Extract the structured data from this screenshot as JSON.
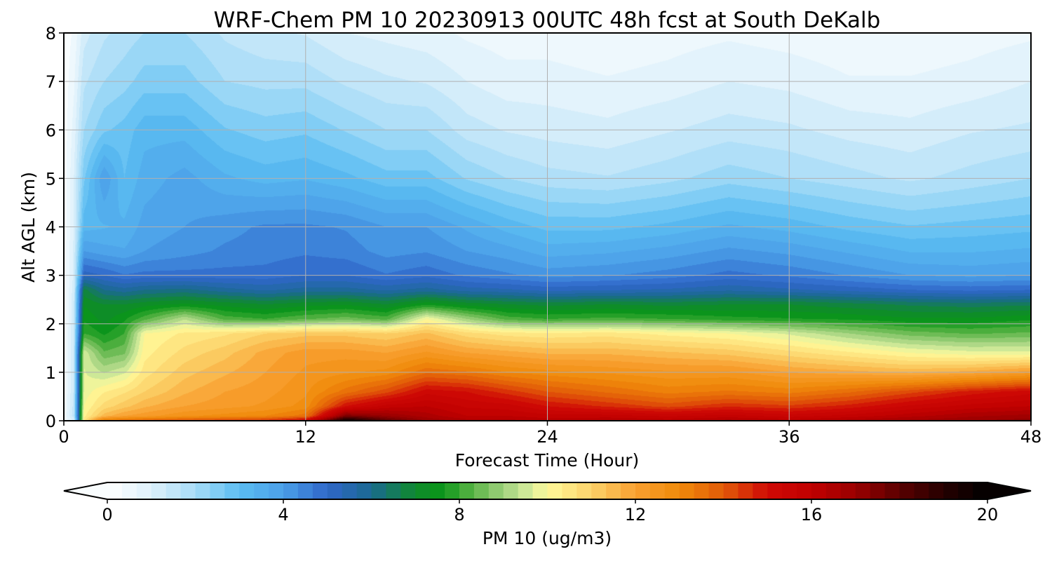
{
  "chart_data": {
    "type": "heatmap",
    "title": "WRF-Chem PM 10  20230913 00UTC 48h fcst at South DeKalb",
    "xlabel": "Forecast Time (Hour)",
    "ylabel": "Alt AGL (km)",
    "xlim": [
      0,
      48
    ],
    "ylim": [
      0,
      8
    ],
    "x_ticks": [
      0,
      12,
      24,
      36,
      48
    ],
    "y_ticks": [
      0,
      1,
      2,
      3,
      4,
      5,
      6,
      7,
      8
    ],
    "grid": true,
    "z_hours": [
      0,
      0.5,
      1,
      2,
      3,
      4,
      6,
      8,
      10,
      12,
      14,
      16,
      18,
      20,
      22,
      24,
      27,
      30,
      33,
      36,
      39,
      42,
      45,
      48
    ],
    "z_altitudes_km": [
      0,
      0.1,
      0.3,
      0.6,
      1.0,
      1.4,
      1.8,
      2.1,
      2.4,
      2.7,
      3.0,
      3.5,
      4.0,
      5.0,
      6.0,
      7.0,
      8.0
    ],
    "z_values": [
      [
        0.3,
        0.3,
        0.2,
        0.2,
        0.2,
        0.2,
        0.1,
        0.1,
        0.1,
        0.1,
        0.1,
        0.1,
        0.1,
        0.1,
        0.1,
        0.1,
        0.1
      ],
      [
        1.0,
        1.6,
        1.5,
        1.4,
        1.4,
        1.4,
        1.4,
        1.3,
        1.3,
        1.2,
        1.1,
        1.1,
        1.0,
        1.0,
        0.8,
        0.6,
        0.4
      ],
      [
        10.5,
        10.2,
        10.0,
        9.8,
        9.7,
        9.6,
        8.0,
        7.6,
        7.3,
        6.8,
        5.2,
        4.0,
        3.2,
        2.6,
        2.0,
        1.6,
        1.2
      ],
      [
        13.5,
        11.5,
        10.8,
        10.3,
        9.3,
        8.4,
        7.6,
        7.2,
        7.0,
        6.0,
        5.0,
        3.8,
        3.3,
        4.0,
        2.6,
        2.0,
        1.6
      ],
      [
        13.8,
        12.0,
        11.2,
        10.6,
        9.6,
        8.6,
        8.0,
        7.6,
        7.0,
        5.8,
        4.7,
        3.7,
        3.4,
        3.0,
        2.8,
        2.2,
        1.8
      ],
      [
        14.0,
        12.2,
        11.6,
        11.0,
        10.5,
        10.2,
        10.0,
        8.2,
        7.2,
        6.0,
        4.8,
        4.0,
        3.8,
        3.5,
        3.2,
        2.5,
        2.0
      ],
      [
        14.2,
        12.6,
        12.0,
        11.6,
        11.2,
        10.8,
        10.4,
        9.3,
        7.4,
        6.1,
        4.8,
        4.2,
        4.0,
        3.8,
        3.2,
        2.5,
        2.0
      ],
      [
        14.4,
        12.8,
        12.2,
        12.0,
        11.6,
        11.2,
        10.6,
        8.2,
        7.2,
        5.8,
        4.8,
        4.4,
        4.2,
        3.4,
        2.7,
        2.0,
        1.6
      ],
      [
        14.6,
        13.0,
        12.4,
        12.2,
        12.0,
        11.8,
        11.0,
        8.0,
        7.0,
        5.6,
        4.8,
        4.5,
        4.4,
        3.2,
        2.5,
        1.9,
        1.4
      ],
      [
        15.5,
        13.5,
        12.8,
        12.6,
        12.4,
        12.2,
        11.2,
        8.3,
        7.2,
        5.8,
        5.0,
        4.6,
        4.4,
        3.3,
        2.6,
        1.9,
        1.3
      ],
      [
        19.8,
        17.5,
        15.0,
        13.5,
        12.6,
        12.2,
        11.2,
        8.5,
        7.3,
        5.8,
        5.0,
        4.5,
        4.3,
        3.1,
        2.3,
        1.6,
        1.0
      ],
      [
        18.0,
        17.0,
        15.8,
        14.2,
        12.8,
        12.0,
        11.0,
        8.2,
        7.0,
        5.6,
        4.7,
        4.2,
        4.0,
        2.8,
        2.0,
        1.4,
        0.9
      ],
      [
        17.0,
        16.5,
        16.0,
        15.2,
        13.6,
        12.4,
        11.4,
        10.0,
        7.6,
        5.8,
        4.9,
        4.3,
        4.0,
        2.8,
        2.0,
        1.3,
        0.8
      ],
      [
        16.5,
        16.0,
        15.6,
        15.0,
        13.4,
        12.0,
        10.8,
        9.0,
        7.2,
        5.5,
        4.6,
        4.0,
        3.6,
        2.3,
        1.5,
        1.0,
        0.6
      ],
      [
        16.5,
        16.0,
        15.5,
        14.5,
        13.0,
        11.8,
        10.5,
        8.2,
        7.0,
        5.4,
        4.4,
        3.8,
        3.2,
        2.0,
        1.3,
        0.8,
        0.5
      ],
      [
        16.2,
        15.8,
        15.0,
        14.0,
        12.8,
        11.6,
        10.4,
        8.0,
        6.9,
        5.2,
        4.2,
        3.5,
        2.9,
        1.8,
        1.2,
        0.8,
        0.5
      ],
      [
        16.4,
        15.8,
        14.6,
        13.6,
        12.6,
        11.6,
        10.5,
        8.1,
        7.0,
        5.3,
        4.3,
        3.6,
        2.9,
        1.7,
        1.1,
        0.7,
        0.4
      ],
      [
        16.2,
        15.6,
        14.2,
        13.2,
        12.4,
        11.4,
        10.2,
        8.0,
        6.9,
        5.4,
        4.5,
        3.8,
        3.1,
        1.9,
        1.3,
        0.8,
        0.5
      ],
      [
        16.5,
        15.8,
        14.6,
        13.4,
        12.4,
        11.2,
        10.0,
        7.8,
        7.0,
        5.6,
        4.8,
        4.1,
        3.4,
        2.2,
        1.5,
        1.0,
        0.6
      ],
      [
        16.2,
        15.5,
        14.4,
        13.2,
        12.0,
        10.8,
        9.6,
        7.7,
        7.0,
        5.4,
        4.6,
        3.9,
        3.2,
        2.0,
        1.4,
        0.9,
        0.5
      ],
      [
        16.5,
        15.8,
        14.8,
        13.6,
        11.8,
        10.4,
        9.0,
        7.6,
        6.8,
        5.2,
        4.3,
        3.6,
        2.9,
        1.8,
        1.2,
        0.7,
        0.4
      ],
      [
        16.8,
        16.2,
        15.4,
        14.2,
        11.6,
        10.0,
        8.5,
        7.4,
        6.6,
        5.0,
        4.0,
        3.3,
        2.7,
        1.6,
        1.1,
        0.7,
        0.4
      ],
      [
        17.0,
        16.6,
        15.8,
        14.8,
        11.8,
        9.8,
        8.3,
        7.4,
        6.5,
        4.9,
        3.9,
        3.3,
        2.8,
        1.8,
        1.3,
        0.8,
        0.5
      ],
      [
        17.2,
        16.8,
        16.0,
        15.2,
        12.2,
        9.8,
        8.4,
        7.6,
        6.6,
        5.0,
        4.0,
        3.4,
        2.9,
        2.0,
        1.4,
        1.0,
        0.6
      ]
    ],
    "colorbar": {
      "label": "PM 10  (ug/m3)",
      "range": [
        0,
        20
      ],
      "ticks": [
        0,
        4,
        8,
        12,
        16,
        20
      ],
      "extend": "both",
      "levels": 60,
      "stops": [
        {
          "v": 0,
          "c": "#ffffff"
        },
        {
          "v": 1,
          "c": "#ddf0fb"
        },
        {
          "v": 2,
          "c": "#a7dcf7"
        },
        {
          "v": 3,
          "c": "#5bbdf2"
        },
        {
          "v": 4,
          "c": "#4b9fe8"
        },
        {
          "v": 5,
          "c": "#2f66c9"
        },
        {
          "v": 6,
          "c": "#1a6a90"
        },
        {
          "v": 7,
          "c": "#0f8a2c"
        },
        {
          "v": 7.6,
          "c": "#0a9619"
        },
        {
          "v": 8.3,
          "c": "#5ab446"
        },
        {
          "v": 9,
          "c": "#9fd17d"
        },
        {
          "v": 9.6,
          "c": "#d6ec9c"
        },
        {
          "v": 10,
          "c": "#fffa9a"
        },
        {
          "v": 11,
          "c": "#fcd26a"
        },
        {
          "v": 12,
          "c": "#f8a030"
        },
        {
          "v": 13,
          "c": "#f08a0a"
        },
        {
          "v": 14,
          "c": "#e25a08"
        },
        {
          "v": 15,
          "c": "#cf0a05"
        },
        {
          "v": 16,
          "c": "#c00000"
        },
        {
          "v": 17,
          "c": "#9a0000"
        },
        {
          "v": 18,
          "c": "#5a0000"
        },
        {
          "v": 19,
          "c": "#250000"
        },
        {
          "v": 20,
          "c": "#000000"
        }
      ]
    }
  }
}
